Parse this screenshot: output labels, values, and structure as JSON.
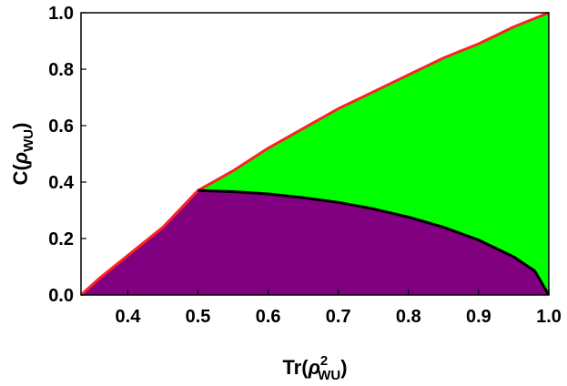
{
  "chart_data": {
    "type": "area",
    "xlabel": {
      "main": "Tr(",
      "sym": "ρ",
      "sup": "2",
      "sub": "WU",
      "close": ")"
    },
    "ylabel": {
      "main": "C(",
      "sym": "ρ",
      "sub": "WU",
      "close": ")"
    },
    "xlim": [
      0.3333,
      1.0
    ],
    "ylim": [
      0.0,
      1.0
    ],
    "x_ticks": [
      0.4,
      0.5,
      0.6,
      0.7,
      0.8,
      0.9,
      1.0
    ],
    "x_tick_labels": [
      "0.4",
      "0.5",
      "0.6",
      "0.7",
      "0.8",
      "0.9",
      "1.0"
    ],
    "y_ticks": [
      0.0,
      0.2,
      0.4,
      0.6,
      0.8,
      1.0
    ],
    "y_tick_labels": [
      "0.0",
      "0.2",
      "0.4",
      "0.6",
      "0.8",
      "1.0"
    ],
    "grid": false,
    "series": [
      {
        "role": "upper-boundary",
        "color": "#ff2020",
        "x": [
          0.3333,
          0.36,
          0.39,
          0.42,
          0.45,
          0.5,
          0.55,
          0.6,
          0.65,
          0.7,
          0.75,
          0.8,
          0.85,
          0.9,
          0.95,
          1.0
        ],
        "y": [
          0.0,
          0.06,
          0.12,
          0.18,
          0.24,
          0.37,
          0.44,
          0.52,
          0.59,
          0.66,
          0.72,
          0.78,
          0.84,
          0.89,
          0.95,
          1.0
        ]
      },
      {
        "role": "lower-boundary",
        "color": "#000000",
        "x": [
          0.5,
          0.55,
          0.6,
          0.65,
          0.7,
          0.75,
          0.8,
          0.85,
          0.9,
          0.95,
          0.98,
          1.0
        ],
        "y": [
          0.37,
          0.366,
          0.358,
          0.345,
          0.328,
          0.305,
          0.276,
          0.24,
          0.195,
          0.135,
          0.085,
          0.0
        ]
      }
    ],
    "regions": [
      {
        "role": "upper-region",
        "color": "#00ff00",
        "between": "upper-boundary and lower-boundary"
      },
      {
        "role": "lower-region",
        "color": "#800080",
        "between": "lower-boundary and x-axis"
      }
    ]
  }
}
